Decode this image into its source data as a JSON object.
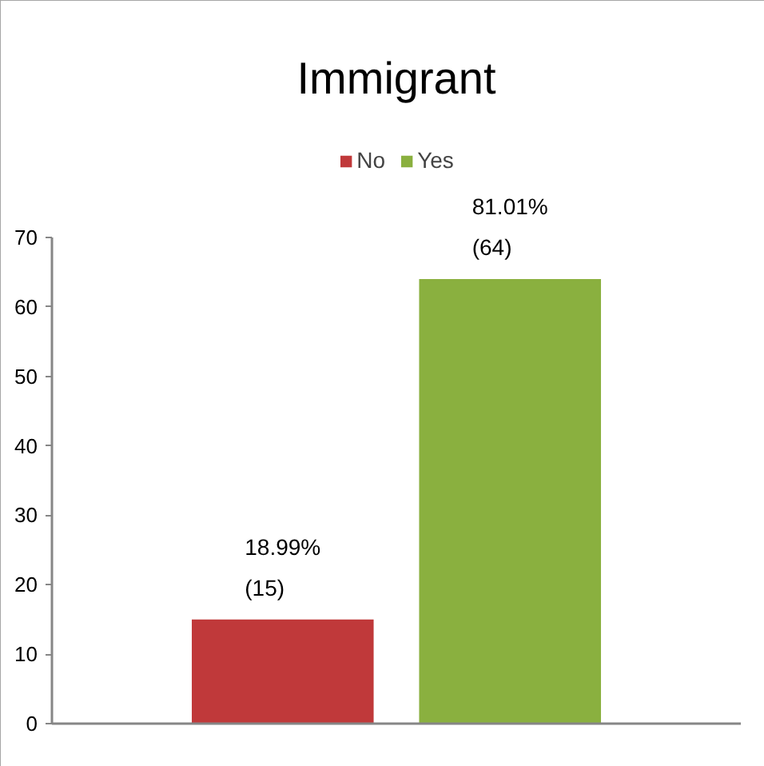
{
  "chart_data": {
    "type": "bar",
    "title": "Immigrant",
    "categories": [
      null
    ],
    "series": [
      {
        "name": "No",
        "color": "#c0393a",
        "values": [
          15
        ],
        "value_labels": [
          "18.99%\n(15)"
        ]
      },
      {
        "name": "Yes",
        "color": "#8ab03f",
        "values": [
          64
        ],
        "value_labels": [
          "81.01%\n(64)"
        ]
      }
    ],
    "ylim": [
      0,
      70
    ],
    "yticks": [
      0,
      10,
      20,
      30,
      40,
      50,
      60,
      70
    ],
    "legend": "top",
    "tick_labels": "y"
  }
}
